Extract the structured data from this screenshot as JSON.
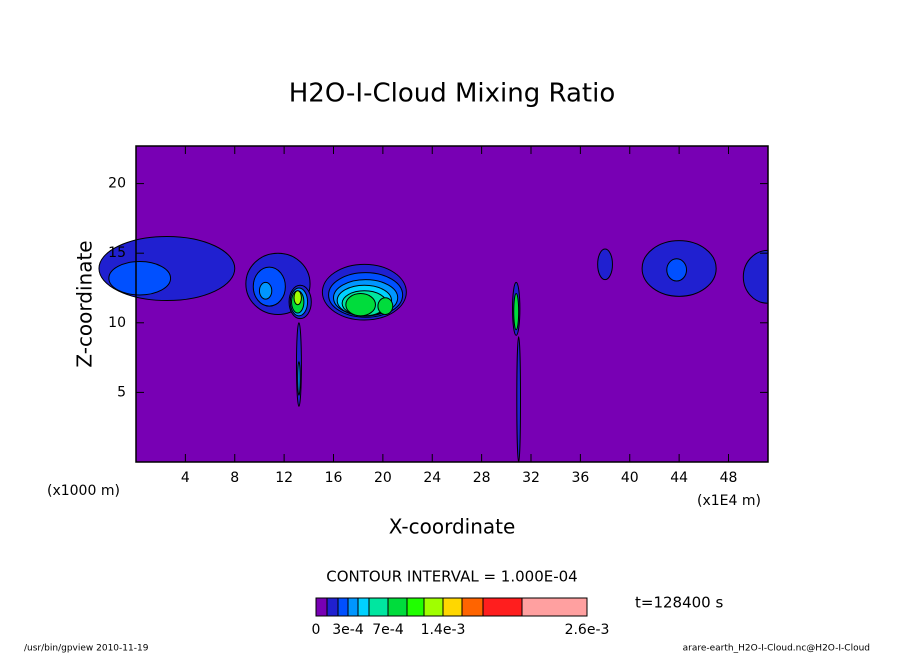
{
  "chart_data": {
    "type": "contour",
    "title": "H2O-I-Cloud Mixing Ratio",
    "x_label": "X-coordinate",
    "y_label": "Z-coordinate",
    "x_unit_left": "(x1000 m)",
    "x_unit_right": "(x1E4 m)",
    "xlim": [
      0,
      51.2
    ],
    "ylim": [
      0,
      22.7
    ],
    "xticks": [
      4,
      8,
      12,
      16,
      20,
      24,
      28,
      32,
      36,
      40,
      44,
      48
    ],
    "yticks": [
      5,
      10,
      15,
      20
    ],
    "contour_interval": "CONTOUR INTERVAL = 1.000E-04",
    "time_label": "t=128400 s",
    "colorbar": {
      "levels": [
        0,
        0.0001,
        0.0002,
        0.0003,
        0.0004,
        0.0005,
        0.0007,
        0.0009,
        0.0011,
        0.0014,
        0.0017,
        0.002,
        0.0023,
        0.0026
      ],
      "colors": [
        "#7800b4",
        "#2020d0",
        "#0050ff",
        "#0096ff",
        "#00d2ff",
        "#00e6a0",
        "#00dc3c",
        "#20ff00",
        "#a0ff00",
        "#ffd700",
        "#ff6400",
        "#ff1e1e",
        "#ffa0a0"
      ],
      "ticks": [
        0,
        {
          "value": 0.0003,
          "label": "3e-4"
        },
        {
          "value": 0.0007,
          "label": "7e-4"
        },
        {
          "value": 0.0014,
          "label": "1.4e-3"
        },
        {
          "value": 0.0026,
          "label": "2.6e-3"
        }
      ]
    },
    "footer_left": "/usr/bin/gpview  2010-11-19",
    "footer_right": "arare-earth_H2O-I-Cloud.nc@H2O-I-Cloud"
  }
}
